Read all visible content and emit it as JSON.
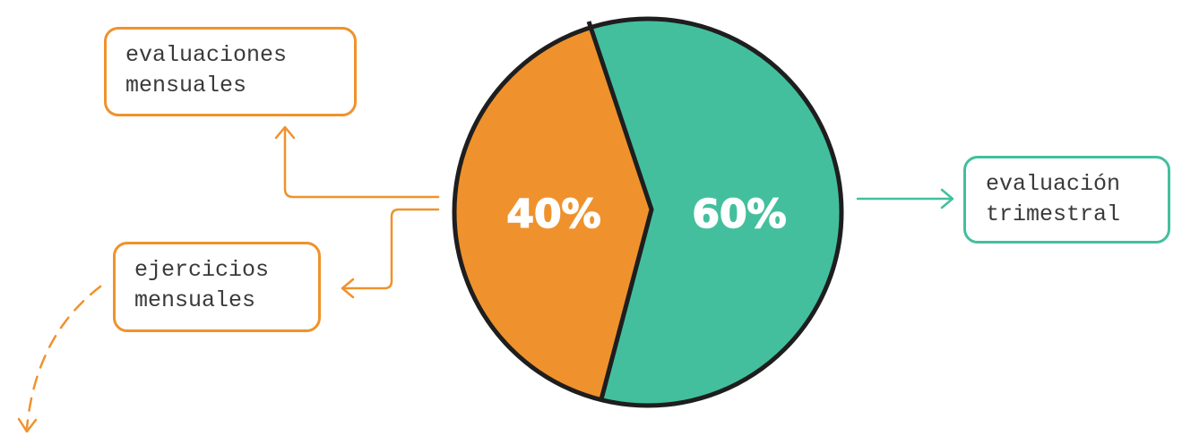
{
  "colors": {
    "orange": "#EF922D",
    "teal": "#43BF9E",
    "outline": "#1E1E1E",
    "text": "#3A3A3A"
  },
  "chart_data": {
    "type": "pie",
    "slices": [
      {
        "value": 40,
        "label": "40%",
        "color": "#EF922D"
      },
      {
        "value": 60,
        "label": "60%",
        "color": "#43BF9E"
      }
    ]
  },
  "labels": {
    "evaluaciones": "evaluaciones\nmensuales",
    "ejercicios": "ejercicios\nmensuales",
    "trimestral": "evaluación\ntrimestral"
  }
}
